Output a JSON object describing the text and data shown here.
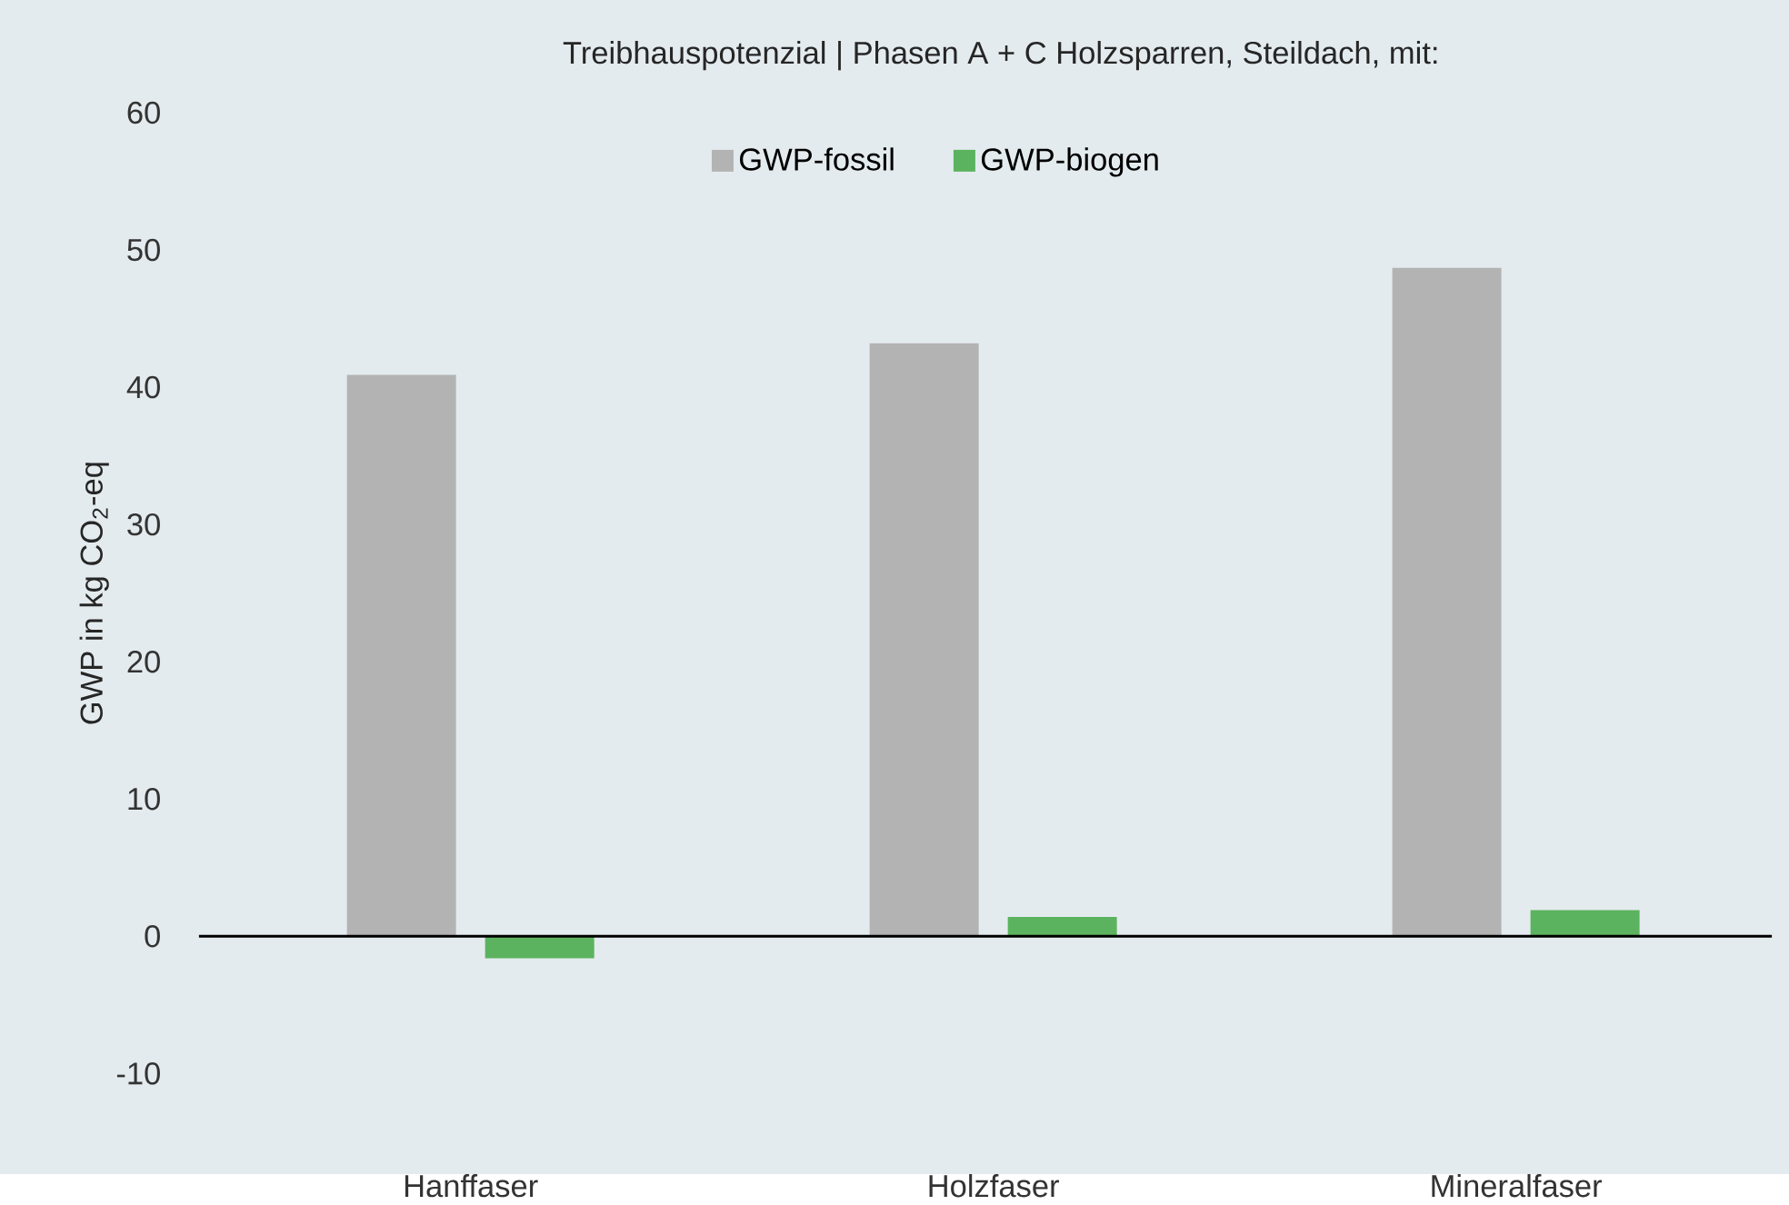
{
  "chart_data": {
    "type": "bar",
    "title": "Treibhauspotenzial | Phasen A + C Holzsparren, Steildach, mit:",
    "ylabel": "GWP in kg CO$_{2}$-eq",
    "categories": [
      "Hanffaser",
      "Holzfaser",
      "Mineralfaser"
    ],
    "series": [
      {
        "name": "GWP-fossil",
        "color": "#b3b3b3",
        "values": [
          40.9,
          43.2,
          48.7
        ]
      },
      {
        "name": "GWP-biogen",
        "color": "#5cb35f",
        "values": [
          -1.6,
          1.4,
          1.9
        ]
      }
    ],
    "ylim": [
      -10,
      60
    ],
    "yticks": [
      -10,
      0,
      10,
      20,
      30,
      40,
      50,
      60
    ],
    "legend": "top"
  }
}
